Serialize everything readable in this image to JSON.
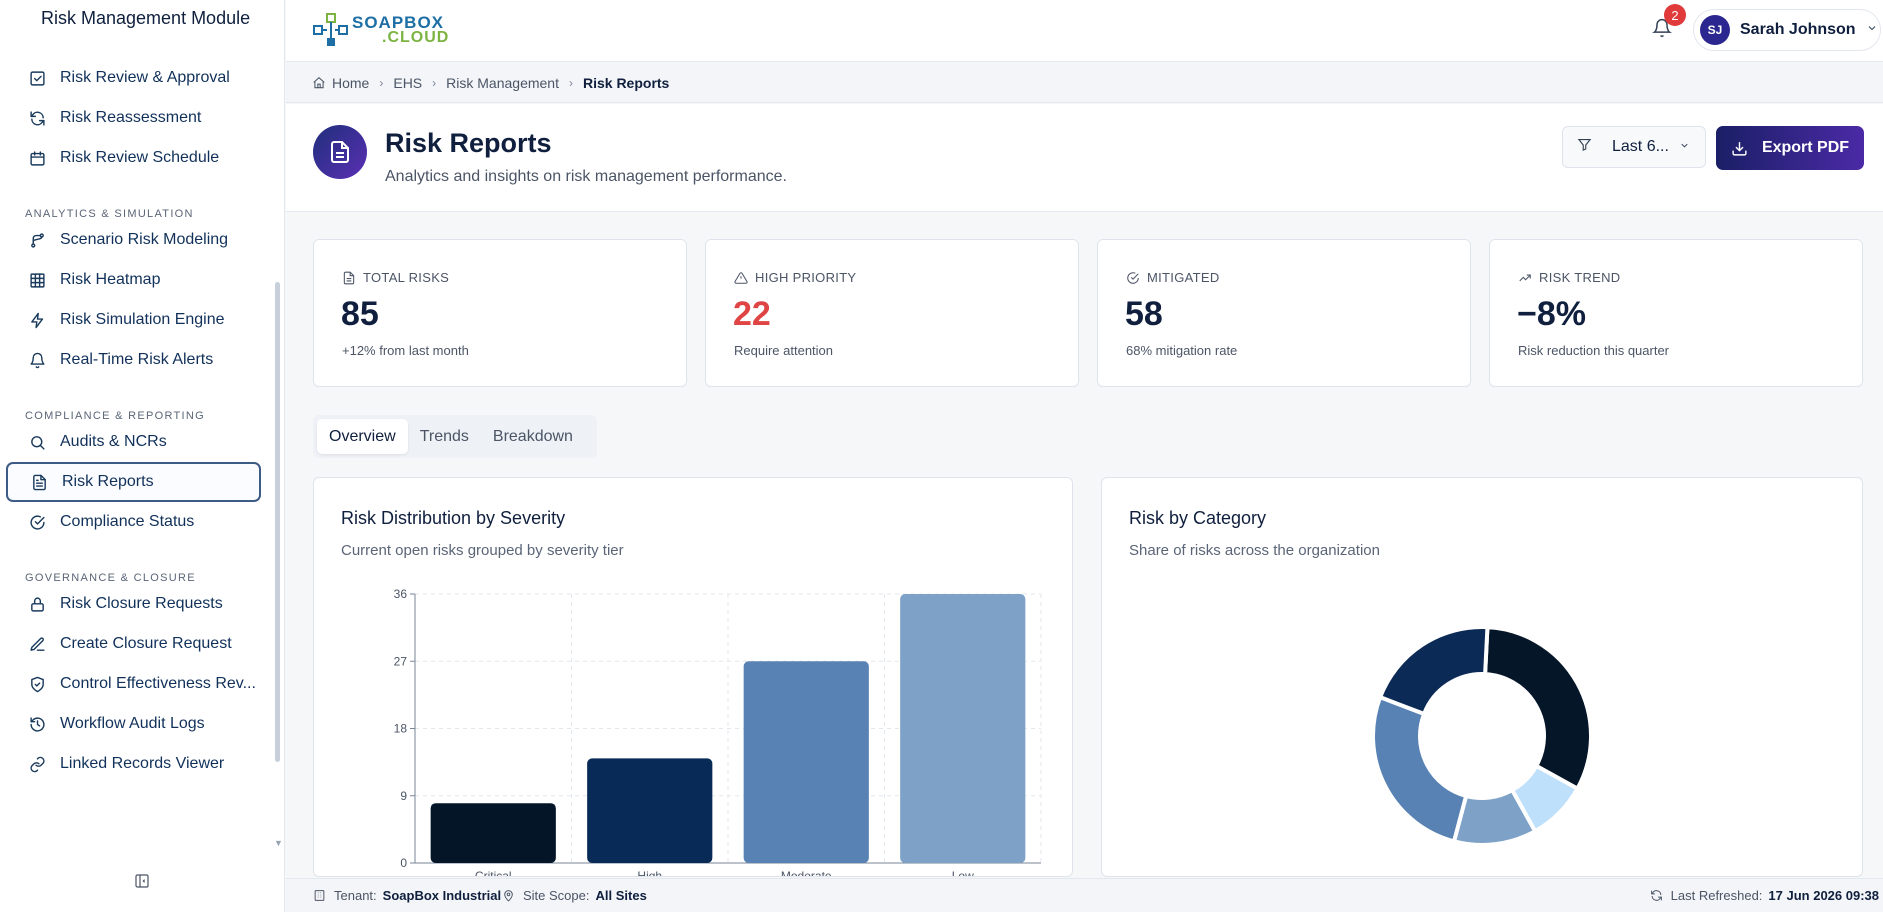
{
  "sidebar": {
    "title": "Risk Management Module",
    "items_top": [
      {
        "label": "Risk Review & Approval",
        "icon": "check-square-icon"
      },
      {
        "label": "Risk Reassessment",
        "icon": "refresh-icon"
      },
      {
        "label": "Risk Review Schedule",
        "icon": "calendar-icon"
      }
    ],
    "section_analytics": "ANALYTICS & SIMULATION",
    "items_analytics": [
      {
        "label": "Scenario Risk Modeling",
        "icon": "branch-icon"
      },
      {
        "label": "Risk Heatmap",
        "icon": "grid-icon"
      },
      {
        "label": "Risk Simulation Engine",
        "icon": "lightning-icon"
      },
      {
        "label": "Real-Time Risk Alerts",
        "icon": "bell-icon"
      }
    ],
    "section_compliance": "COMPLIANCE & REPORTING",
    "items_compliance": [
      {
        "label": "Audits & NCRs",
        "icon": "search-icon"
      },
      {
        "label": "Risk Reports",
        "icon": "document-icon",
        "active": true
      },
      {
        "label": "Compliance Status",
        "icon": "check-circle-icon"
      }
    ],
    "section_governance": "GOVERNANCE & CLOSURE",
    "items_governance": [
      {
        "label": "Risk Closure Requests",
        "icon": "lock-icon"
      },
      {
        "label": "Create Closure Request",
        "icon": "edit-icon"
      },
      {
        "label": "Control Effectiveness Rev...",
        "icon": "shield-check-icon"
      },
      {
        "label": "Workflow Audit Logs",
        "icon": "history-icon"
      },
      {
        "label": "Linked Records Viewer",
        "icon": "link-icon"
      }
    ]
  },
  "header": {
    "logo_line1": "SOAPBOX",
    "logo_line2": ".CLOUD",
    "notification_count": "2",
    "user_initials": "SJ",
    "user_name": "Sarah Johnson"
  },
  "breadcrumb": {
    "home": "Home",
    "ehs": "EHS",
    "risk_management": "Risk Management",
    "current": "Risk Reports"
  },
  "page": {
    "title": "Risk Reports",
    "subtitle": "Analytics and insights on risk management performance.",
    "filter_label": "Last 6...",
    "export_label": "Export PDF"
  },
  "kpis": [
    {
      "label": "TOTAL RISKS",
      "value": "85",
      "note": "+12% from last month",
      "icon": "document-icon"
    },
    {
      "label": "HIGH PRIORITY",
      "value": "22",
      "note": "Require attention",
      "icon": "alert-triangle-icon",
      "color": "#e04545"
    },
    {
      "label": "MITIGATED",
      "value": "58",
      "note": "68% mitigation rate",
      "icon": "check-circle-icon"
    },
    {
      "label": "RISK TREND",
      "value": "−8%",
      "note": "Risk reduction this quarter",
      "icon": "trending-up-icon"
    }
  ],
  "tabs": [
    "Overview",
    "Trends",
    "Breakdown"
  ],
  "active_tab": "Overview",
  "panels": {
    "severity": {
      "title": "Risk Distribution by Severity",
      "subtitle": "Current open risks grouped by severity tier"
    },
    "category": {
      "title": "Risk by Category",
      "subtitle": "Share of risks across the organization"
    }
  },
  "chart_data": [
    {
      "type": "bar",
      "title": "Risk Distribution by Severity",
      "categories": [
        "Critical",
        "High",
        "Moderate",
        "Low"
      ],
      "values": [
        8,
        14,
        27,
        36
      ],
      "colors": [
        "#041527",
        "#082a57",
        "#5882b3",
        "#7ea1c7"
      ],
      "yticks": [
        0,
        9,
        18,
        27,
        36
      ],
      "ylim": [
        0,
        36
      ],
      "grid": true
    },
    {
      "type": "pie",
      "title": "Risk by Category",
      "donut": true,
      "values": [
        29,
        8,
        11,
        24,
        18
      ],
      "colors": [
        "#051628",
        "#bfe0fb",
        "#7ea1c7",
        "#5882b3",
        "#0b2a55"
      ]
    }
  ],
  "footer": {
    "tenant_label": "Tenant:",
    "tenant_value": "SoapBox Industrial",
    "site_label": "Site Scope:",
    "site_value": "All Sites",
    "refreshed_label": "Last Refreshed:",
    "refreshed_value": "17 Jun 2026 09:38"
  }
}
